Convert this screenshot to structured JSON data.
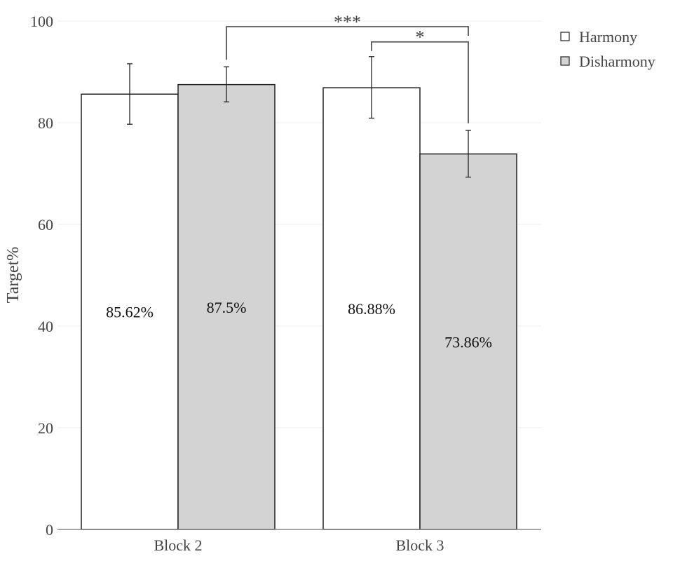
{
  "chart_data": {
    "type": "bar",
    "ylabel": "Target%",
    "xlabel": "",
    "ylim": [
      0,
      100
    ],
    "yticks": [
      0,
      20,
      40,
      60,
      80,
      100
    ],
    "grid": true,
    "legend_position": "top-right",
    "categories": [
      "Block 2",
      "Block 3"
    ],
    "series": [
      {
        "name": "Harmony",
        "color": "#ffffff",
        "values": [
          85.62,
          86.88
        ],
        "labels": [
          "85.62%",
          "86.88%"
        ],
        "error_low": [
          79.7,
          80.9
        ],
        "error_high": [
          91.6,
          93.0
        ]
      },
      {
        "name": "Disharmony",
        "color": "#d3d3d3",
        "values": [
          87.5,
          73.86
        ],
        "labels": [
          "87.5%",
          "73.86%"
        ],
        "error_low": [
          84.1,
          69.3
        ],
        "error_high": [
          91.0,
          78.5
        ]
      }
    ],
    "significance": [
      {
        "from_category": 0,
        "from_series": 1,
        "to_category": 1,
        "to_series": 1,
        "label": "***",
        "level": 98.9
      },
      {
        "from_category": 1,
        "from_series": 0,
        "to_category": 1,
        "to_series": 1,
        "label": "*",
        "level": 95.9
      }
    ]
  }
}
